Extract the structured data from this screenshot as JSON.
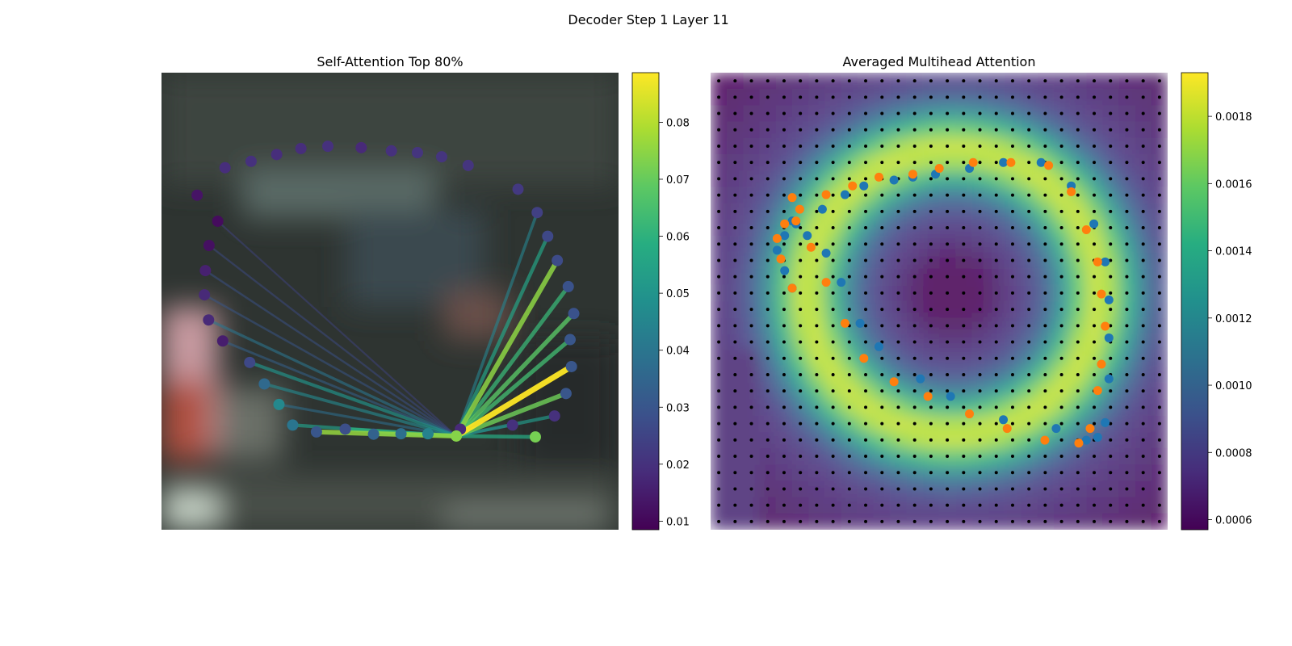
{
  "figure": {
    "title": "Decoder Step 1 Layer 11"
  },
  "chart_data": [
    {
      "type": "line",
      "title": "Self-Attention Top 80%",
      "xlabel": "",
      "ylabel": "",
      "background": "blurred street-scene photograph",
      "points": [
        [
          0.654,
          0.78
        ],
        [
          0.768,
          0.771
        ],
        [
          0.818,
          0.797
        ],
        [
          0.86,
          0.751
        ],
        [
          0.885,
          0.702
        ],
        [
          0.897,
          0.643
        ],
        [
          0.894,
          0.584
        ],
        [
          0.902,
          0.527
        ],
        [
          0.89,
          0.468
        ],
        [
          0.866,
          0.411
        ],
        [
          0.845,
          0.358
        ],
        [
          0.822,
          0.306
        ],
        [
          0.78,
          0.255
        ],
        [
          0.671,
          0.203
        ],
        [
          0.613,
          0.184
        ],
        [
          0.56,
          0.175
        ],
        [
          0.503,
          0.171
        ],
        [
          0.437,
          0.164
        ],
        [
          0.364,
          0.161
        ],
        [
          0.305,
          0.166
        ],
        [
          0.252,
          0.179
        ],
        [
          0.196,
          0.194
        ],
        [
          0.139,
          0.208
        ],
        [
          0.078,
          0.268
        ],
        [
          0.123,
          0.325
        ],
        [
          0.104,
          0.378
        ],
        [
          0.096,
          0.433
        ],
        [
          0.094,
          0.486
        ],
        [
          0.103,
          0.541
        ],
        [
          0.134,
          0.587
        ],
        [
          0.193,
          0.634
        ],
        [
          0.225,
          0.681
        ],
        [
          0.257,
          0.726
        ],
        [
          0.287,
          0.771
        ],
        [
          0.339,
          0.786
        ],
        [
          0.402,
          0.78
        ],
        [
          0.464,
          0.791
        ],
        [
          0.524,
          0.79
        ],
        [
          0.583,
          0.79
        ],
        [
          0.645,
          0.795
        ]
      ],
      "query_point_index": 39,
      "point_values": [
        0.018,
        0.02,
        0.072,
        0.02,
        0.03,
        0.03,
        0.03,
        0.029,
        0.029,
        0.027,
        0.026,
        0.024,
        0.022,
        0.021,
        0.021,
        0.021,
        0.02,
        0.018,
        0.02,
        0.019,
        0.019,
        0.02,
        0.019,
        0.013,
        0.011,
        0.012,
        0.016,
        0.018,
        0.018,
        0.015,
        0.026,
        0.036,
        0.046,
        0.04,
        0.03,
        0.028,
        0.034,
        0.038,
        0.044,
        0.074
      ],
      "attention_lines": [
        {
          "target": 1,
          "value": 0.035
        },
        {
          "target": 2,
          "value": 0.058
        },
        {
          "target": 3,
          "value": 0.052
        },
        {
          "target": 4,
          "value": 0.071
        },
        {
          "target": 5,
          "value": 0.089
        },
        {
          "target": 6,
          "value": 0.064
        },
        {
          "target": 7,
          "value": 0.068
        },
        {
          "target": 8,
          "value": 0.062
        },
        {
          "target": 9,
          "value": 0.075
        },
        {
          "target": 10,
          "value": 0.055
        },
        {
          "target": 11,
          "value": 0.044
        },
        {
          "target": 24,
          "value": 0.025
        },
        {
          "target": 25,
          "value": 0.027
        },
        {
          "target": 26,
          "value": 0.029
        },
        {
          "target": 27,
          "value": 0.03
        },
        {
          "target": 28,
          "value": 0.04
        },
        {
          "target": 29,
          "value": 0.034
        },
        {
          "target": 30,
          "value": 0.05
        },
        {
          "target": 31,
          "value": 0.046
        },
        {
          "target": 32,
          "value": 0.038
        },
        {
          "target": 33,
          "value": 0.053
        },
        {
          "target": 34,
          "value": 0.076
        },
        {
          "target": 35,
          "value": 0.06
        },
        {
          "target": 36,
          "value": 0.048
        },
        {
          "target": 37,
          "value": 0.05
        },
        {
          "target": 38,
          "value": 0.055
        }
      ],
      "colorbar": {
        "colormap": "viridis",
        "range": [
          0.0085,
          0.0887
        ],
        "ticks": [
          0.01,
          0.02,
          0.03,
          0.04,
          0.05,
          0.06,
          0.07,
          0.08
        ],
        "tick_labels": [
          "0.01",
          "0.02",
          "0.03",
          "0.04",
          "0.05",
          "0.06",
          "0.07",
          "0.08"
        ]
      }
    },
    {
      "type": "heatmap",
      "title": "Averaged Multihead Attention",
      "xlabel": "",
      "ylabel": "",
      "grid_size": 28,
      "grid_dots": true,
      "colormap": "viridis",
      "value_range": [
        0.00057,
        0.00193
      ],
      "colorbar": {
        "ticks": [
          0.0006,
          0.0008,
          0.001,
          0.0012,
          0.0014,
          0.0016,
          0.0018
        ],
        "tick_labels": [
          "0.0006",
          "0.0008",
          "0.0010",
          "0.0012",
          "0.0014",
          "0.0016",
          "0.0018"
        ]
      },
      "series": [
        {
          "color": "#1f77b4",
          "points": [
            [
              0.12,
              0.45
            ],
            [
              0.1,
              0.39
            ],
            [
              0.08,
              0.32
            ],
            [
              0.1,
              0.27
            ],
            [
              0.13,
              0.23
            ],
            [
              0.2,
              0.18
            ],
            [
              0.26,
              0.13
            ],
            [
              0.31,
              0.1
            ],
            [
              0.39,
              0.08
            ],
            [
              0.44,
              0.07
            ],
            [
              0.5,
              0.06
            ],
            [
              0.59,
              0.04
            ],
            [
              0.68,
              0.02
            ],
            [
              0.78,
              0.02
            ],
            [
              0.86,
              0.1
            ],
            [
              0.92,
              0.23
            ],
            [
              0.95,
              0.36
            ],
            [
              0.96,
              0.49
            ],
            [
              0.96,
              0.62
            ],
            [
              0.96,
              0.76
            ],
            [
              0.95,
              0.91
            ],
            [
              0.93,
              0.96
            ],
            [
              0.9,
              0.97
            ],
            [
              0.82,
              0.93
            ],
            [
              0.68,
              0.9
            ],
            [
              0.54,
              0.82
            ],
            [
              0.46,
              0.76
            ],
            [
              0.35,
              0.65
            ],
            [
              0.3,
              0.57
            ],
            [
              0.25,
              0.43
            ],
            [
              0.21,
              0.33
            ],
            [
              0.16,
              0.27
            ],
            [
              0.12,
              0.22
            ]
          ]
        },
        {
          "color": "#ff7f0e",
          "points": [
            [
              0.12,
              0.45
            ],
            [
              0.09,
              0.35
            ],
            [
              0.08,
              0.28
            ],
            [
              0.1,
              0.23
            ],
            [
              0.14,
              0.18
            ],
            [
              0.21,
              0.13
            ],
            [
              0.28,
              0.1
            ],
            [
              0.35,
              0.07
            ],
            [
              0.44,
              0.06
            ],
            [
              0.51,
              0.04
            ],
            [
              0.6,
              0.02
            ],
            [
              0.7,
              0.02
            ],
            [
              0.8,
              0.03
            ],
            [
              0.86,
              0.12
            ],
            [
              0.9,
              0.25
            ],
            [
              0.93,
              0.36
            ],
            [
              0.94,
              0.47
            ],
            [
              0.95,
              0.58
            ],
            [
              0.94,
              0.71
            ],
            [
              0.93,
              0.8
            ],
            [
              0.91,
              0.93
            ],
            [
              0.88,
              0.98
            ],
            [
              0.79,
              0.97
            ],
            [
              0.69,
              0.93
            ],
            [
              0.59,
              0.88
            ],
            [
              0.48,
              0.82
            ],
            [
              0.39,
              0.77
            ],
            [
              0.31,
              0.69
            ],
            [
              0.26,
              0.57
            ],
            [
              0.21,
              0.43
            ],
            [
              0.17,
              0.31
            ],
            [
              0.13,
              0.22
            ],
            [
              0.12,
              0.14
            ]
          ]
        }
      ]
    }
  ]
}
